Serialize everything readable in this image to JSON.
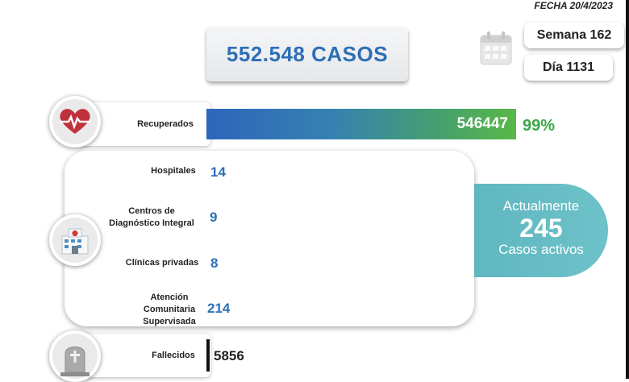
{
  "header": {
    "date": "FECHA 20/4/2023"
  },
  "summary": {
    "total_cases": "552.548 CASOS",
    "week": "Semana 162",
    "day": "Día 1131"
  },
  "recovered": {
    "label": "Recuperados",
    "value": "546447",
    "percent": "99%",
    "share": 0.99
  },
  "care_locations": [
    {
      "label": "Hospitales",
      "value": "14"
    },
    {
      "label": "Centros de Diagnóstico Integral",
      "value": "9"
    },
    {
      "label": "Clínicas privadas",
      "value": "8"
    },
    {
      "label": "Atención Comunitaria Supervisada",
      "value": "214"
    }
  ],
  "active": {
    "line1": "Actualmente",
    "count": "245",
    "line2": "Casos activos"
  },
  "deaths": {
    "label": "Fallecidos",
    "value": "5856"
  },
  "colors": {
    "accent_blue": "#2d6fb6",
    "green": "#3aa84a",
    "teal": "#62b9c2",
    "heart_red": "#c0323b"
  },
  "icons": [
    "calendar-icon",
    "heart-pulse-icon",
    "hospital-icon",
    "tombstone-icon"
  ]
}
